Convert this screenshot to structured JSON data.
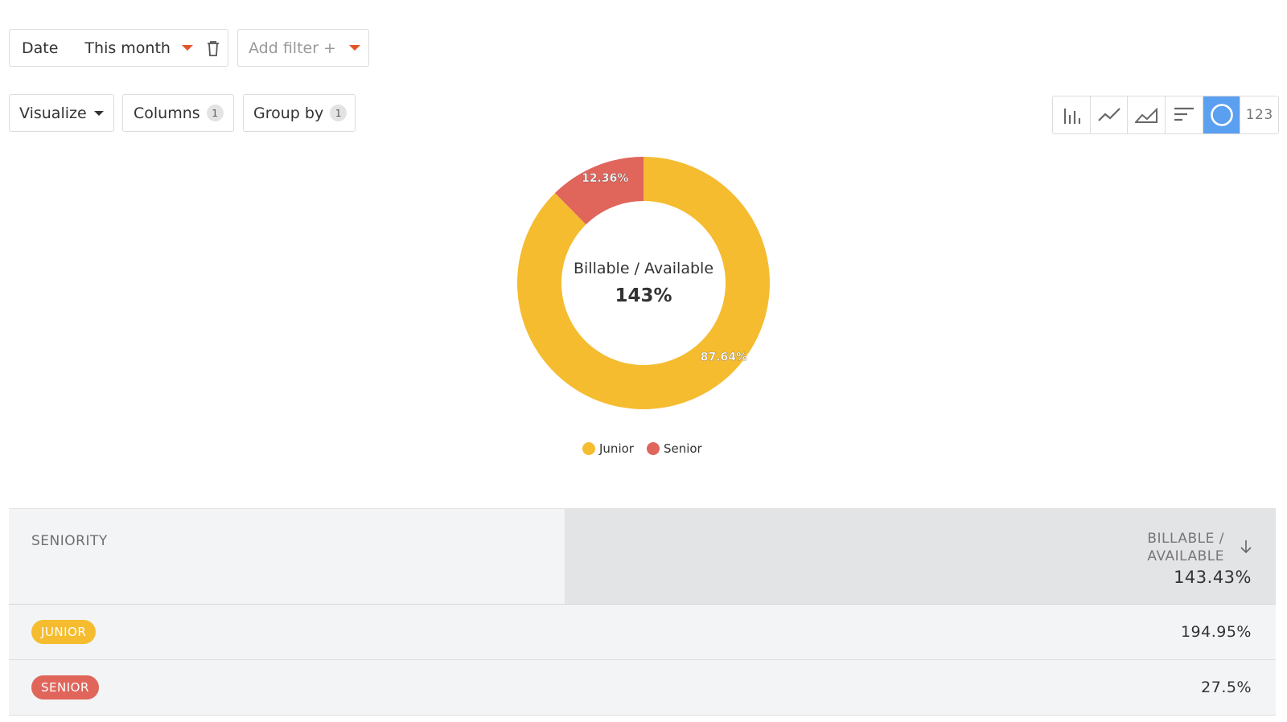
{
  "filters": {
    "date_label": "Date",
    "date_value": "This month",
    "add_filter_label": "Add filter +"
  },
  "toolbar": {
    "visualize_label": "Visualize",
    "columns_label": "Columns",
    "columns_count": "1",
    "groupby_label": "Group by",
    "groupby_count": "1"
  },
  "viz_types": [
    {
      "icon": "bar-chart-icon"
    },
    {
      "icon": "line-chart-icon"
    },
    {
      "icon": "area-chart-icon"
    },
    {
      "icon": "horizontal-bar-icon"
    },
    {
      "icon": "donut-chart-icon",
      "active": true
    },
    {
      "label": "123"
    }
  ],
  "colors": {
    "junior": "#f5bc30",
    "senior": "#e0655b",
    "accent": "#e2552b",
    "active_viz": "#5b9ff0"
  },
  "chart_data": {
    "type": "pie",
    "center_label": "Billable / Available",
    "center_value": "143%",
    "series": [
      {
        "name": "Junior",
        "value": 87.64,
        "label": "87.64%"
      },
      {
        "name": "Senior",
        "value": 12.36,
        "label": "12.36%"
      }
    ],
    "legend": [
      "Junior",
      "Senior"
    ],
    "legend_position": "bottom"
  },
  "table": {
    "col1_header": "SENIORITY",
    "col2_header_line1": "BILLABLE /",
    "col2_header_line2": "AVAILABLE",
    "col2_total": "143.43%",
    "rows": [
      {
        "label": "JUNIOR",
        "value": "194.95%"
      },
      {
        "label": "SENIOR",
        "value": "27.5%"
      }
    ]
  }
}
